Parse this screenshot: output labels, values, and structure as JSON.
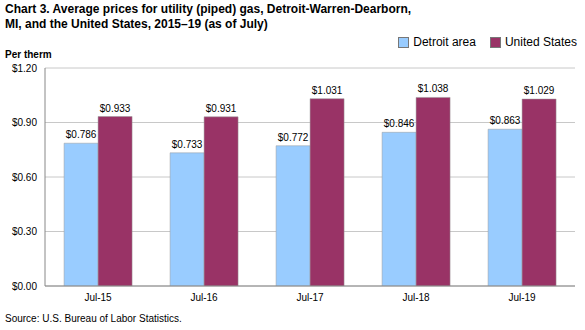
{
  "chart_data": {
    "type": "bar",
    "title": "Chart 3. Average prices for utility (piped) gas, Detroit-Warren-Dearborn, MI, and the United States, 2015–19 (as of July)",
    "y_label": "Per therm",
    "source": "Source: U.S. Bureau of Labor Statistics.",
    "categories": [
      "Jul-15",
      "Jul-16",
      "Jul-17",
      "Jul-18",
      "Jul-19"
    ],
    "series": [
      {
        "name": "Detroit area",
        "color": "#99ccff",
        "values": [
          0.786,
          0.733,
          0.772,
          0.846,
          0.863
        ],
        "value_labels": [
          "$0.786",
          "$0.733",
          "$0.772",
          "$0.846",
          "$0.863"
        ]
      },
      {
        "name": "United States",
        "color": "#993366",
        "values": [
          0.933,
          0.931,
          1.031,
          1.038,
          1.029
        ],
        "value_labels": [
          "$0.933",
          "$0.931",
          "$1.031",
          "$1.038",
          "$1.029"
        ]
      }
    ],
    "ylim": [
      0,
      1.2
    ],
    "yticks": [
      {
        "value": 0,
        "label": "$0.00"
      },
      {
        "value": 0.3,
        "label": "$0.30"
      },
      {
        "value": 0.6,
        "label": "$0.60"
      },
      {
        "value": 0.9,
        "label": "$0.90"
      },
      {
        "value": 1.2,
        "label": "$1.20"
      }
    ],
    "grid": true,
    "legend": "top-right",
    "data_labels": true
  }
}
